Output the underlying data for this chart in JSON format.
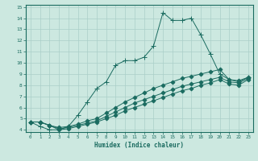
{
  "xlabel": "Humidex (Indice chaleur)",
  "bg_color": "#cce8e0",
  "grid_color": "#aacfc8",
  "line_color": "#1a6b60",
  "xlim": [
    -0.5,
    23.5
  ],
  "ylim": [
    3.8,
    15.2
  ],
  "xticks": [
    0,
    1,
    2,
    3,
    4,
    5,
    6,
    7,
    8,
    9,
    10,
    11,
    12,
    13,
    14,
    15,
    16,
    17,
    18,
    19,
    20,
    21,
    22,
    23
  ],
  "yticks": [
    4,
    5,
    6,
    7,
    8,
    9,
    10,
    11,
    12,
    13,
    14,
    15
  ],
  "series": [
    {
      "x": [
        0,
        1,
        2,
        3,
        4,
        5,
        6,
        7,
        8,
        9,
        10,
        11,
        12,
        13,
        14,
        15,
        16,
        17,
        18,
        19,
        20,
        21,
        22,
        23
      ],
      "y": [
        4.7,
        4.3,
        4.0,
        4.0,
        4.3,
        5.3,
        6.5,
        7.7,
        8.3,
        9.8,
        10.2,
        10.2,
        10.5,
        11.5,
        14.5,
        13.8,
        13.8,
        14.0,
        12.5,
        10.8,
        9.0,
        8.5,
        8.3,
        8.7
      ],
      "marker": "+"
    },
    {
      "x": [
        0,
        1,
        2,
        3,
        4,
        5,
        6,
        7,
        8,
        9,
        10,
        11,
        12,
        13,
        14,
        15,
        16,
        17,
        18,
        19,
        20,
        21,
        22,
        23
      ],
      "y": [
        4.7,
        4.7,
        4.4,
        4.2,
        4.3,
        4.5,
        4.8,
        5.0,
        5.5,
        6.0,
        6.5,
        6.9,
        7.3,
        7.7,
        8.0,
        8.3,
        8.6,
        8.8,
        9.0,
        9.2,
        9.4,
        8.5,
        8.4,
        8.7
      ],
      "marker": "D"
    },
    {
      "x": [
        0,
        1,
        2,
        3,
        4,
        5,
        6,
        7,
        8,
        9,
        10,
        11,
        12,
        13,
        14,
        15,
        16,
        17,
        18,
        19,
        20,
        21,
        22,
        23
      ],
      "y": [
        4.7,
        4.7,
        4.4,
        4.1,
        4.2,
        4.4,
        4.6,
        4.8,
        5.2,
        5.6,
        6.0,
        6.4,
        6.7,
        7.0,
        7.3,
        7.6,
        7.9,
        8.1,
        8.3,
        8.5,
        8.7,
        8.3,
        8.2,
        8.6
      ],
      "marker": "D"
    },
    {
      "x": [
        0,
        1,
        2,
        3,
        4,
        5,
        6,
        7,
        8,
        9,
        10,
        11,
        12,
        13,
        14,
        15,
        16,
        17,
        18,
        19,
        20,
        21,
        22,
        23
      ],
      "y": [
        4.7,
        4.7,
        4.4,
        4.0,
        4.1,
        4.3,
        4.5,
        4.7,
        5.0,
        5.3,
        5.7,
        6.0,
        6.3,
        6.6,
        6.9,
        7.2,
        7.5,
        7.7,
        8.0,
        8.2,
        8.5,
        8.1,
        8.0,
        8.5
      ],
      "marker": "D"
    }
  ]
}
